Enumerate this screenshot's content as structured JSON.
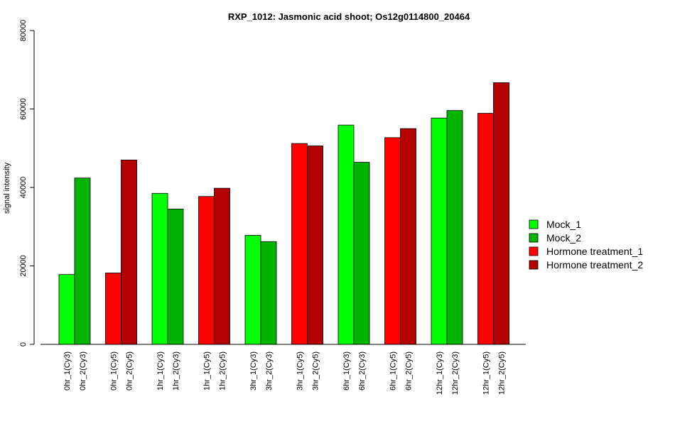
{
  "chart_data": {
    "type": "bar",
    "title": "RXP_1012: Jasmonic acid shoot; Os12g0114800_20464",
    "ylabel": "signal intensity",
    "xlabel": "",
    "ylim": [
      0,
      80000
    ],
    "yticks": [
      "0",
      "20000",
      "40000",
      "60000",
      "80000"
    ],
    "legend_position": "right",
    "legend": [
      {
        "name": "Mock_1",
        "color": "#00ff00"
      },
      {
        "name": "Mock_2",
        "color": "#00b400"
      },
      {
        "name": "Hormone treatment_1",
        "color": "#ff0000"
      },
      {
        "name": "Hormone treatment_2",
        "color": "#b40000"
      }
    ],
    "bars": [
      {
        "label": "0hr_1(Cy3)",
        "value": 17800,
        "color": "#00ff00"
      },
      {
        "label": "0hr_2(Cy3)",
        "value": 42400,
        "color": "#00b400"
      },
      {
        "label": "0hr_1(Cy5)",
        "value": 18200,
        "color": "#ff0000"
      },
      {
        "label": "0hr_2(Cy5)",
        "value": 47000,
        "color": "#b40000"
      },
      {
        "label": "1hr_1(Cy3)",
        "value": 38500,
        "color": "#00ff00"
      },
      {
        "label": "1hr_2(Cy3)",
        "value": 34500,
        "color": "#00b400"
      },
      {
        "label": "1hr_1(Cy5)",
        "value": 37700,
        "color": "#ff0000"
      },
      {
        "label": "1hr_2(Cy5)",
        "value": 39800,
        "color": "#b40000"
      },
      {
        "label": "3hr_1(Cy3)",
        "value": 27800,
        "color": "#00ff00"
      },
      {
        "label": "3hr_2(Cy3)",
        "value": 26200,
        "color": "#00b400"
      },
      {
        "label": "3hr_1(Cy5)",
        "value": 51200,
        "color": "#ff0000"
      },
      {
        "label": "3hr_2(Cy5)",
        "value": 50600,
        "color": "#b40000"
      },
      {
        "label": "6hr_1(Cy3)",
        "value": 55900,
        "color": "#00ff00"
      },
      {
        "label": "6hr_2(Cy3)",
        "value": 46400,
        "color": "#00b400"
      },
      {
        "label": "6hr_1(Cy5)",
        "value": 52700,
        "color": "#ff0000"
      },
      {
        "label": "6hr_2(Cy5)",
        "value": 55000,
        "color": "#b40000"
      },
      {
        "label": "12hr_1(Cy3)",
        "value": 57700,
        "color": "#00ff00"
      },
      {
        "label": "12hr_2(Cy3)",
        "value": 59600,
        "color": "#00b400"
      },
      {
        "label": "12hr_1(Cy5)",
        "value": 58900,
        "color": "#ff0000"
      },
      {
        "label": "12hr_2(Cy5)",
        "value": 66700,
        "color": "#b40000"
      }
    ]
  }
}
